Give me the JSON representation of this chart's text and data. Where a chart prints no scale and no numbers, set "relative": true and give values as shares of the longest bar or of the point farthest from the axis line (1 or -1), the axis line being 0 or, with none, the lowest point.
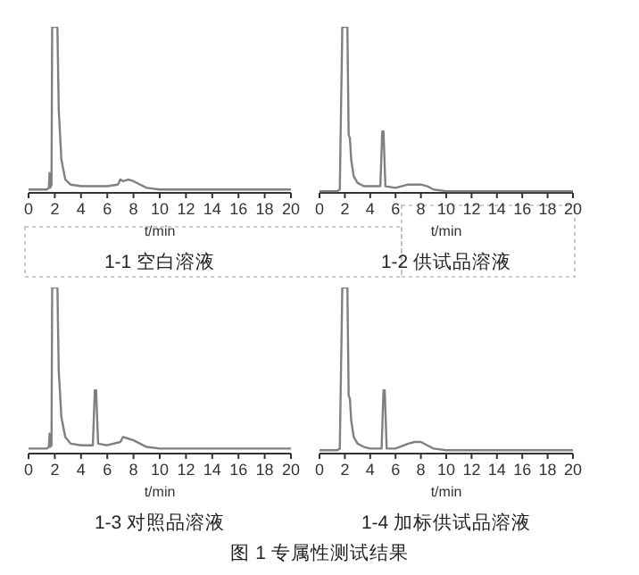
{
  "chart_data": [
    {
      "type": "line",
      "title": "1-1 空白溶液",
      "xlabel": "t/min",
      "relative": true,
      "xlim": [
        0,
        20
      ],
      "xticks": [
        0,
        2,
        4,
        6,
        8,
        10,
        12,
        14,
        16,
        18,
        20
      ],
      "series": [
        {
          "color": "#808080",
          "x": [
            0,
            1.4,
            1.55,
            1.6,
            1.65,
            1.75,
            1.8,
            2.2,
            2.3,
            2.5,
            2.8,
            3.2,
            4,
            6,
            6.8,
            7,
            7.2,
            7.6,
            8,
            8.5,
            9,
            10,
            12,
            20
          ],
          "values": [
            0.02,
            0.02,
            0.03,
            0.12,
            0.03,
            0.05,
            1,
            1,
            0.5,
            0.2,
            0.08,
            0.05,
            0.04,
            0.04,
            0.05,
            0.08,
            0.07,
            0.08,
            0.07,
            0.05,
            0.03,
            0.02,
            0.02,
            0.02
          ]
        }
      ]
    },
    {
      "type": "line",
      "title": "1-2 供试品溶液",
      "xlabel": "t/min",
      "relative": true,
      "xlim": [
        0,
        20
      ],
      "xticks": [
        0,
        2,
        4,
        6,
        8,
        10,
        12,
        14,
        16,
        18,
        20
      ],
      "series": [
        {
          "color": "#808080",
          "x": [
            0,
            1.4,
            1.6,
            1.8,
            2.2,
            2.3,
            2.4,
            2.5,
            2.7,
            3,
            3.5,
            4,
            4.8,
            4.95,
            5.05,
            5.2,
            6,
            7,
            7.5,
            8,
            8.5,
            9,
            10,
            12,
            20
          ],
          "values": [
            0.01,
            0.01,
            0.02,
            1,
            1,
            0.35,
            0.33,
            0.2,
            0.1,
            0.06,
            0.04,
            0.04,
            0.04,
            0.37,
            0.37,
            0.04,
            0.03,
            0.05,
            0.05,
            0.05,
            0.04,
            0.02,
            0.01,
            0.01,
            0.01
          ]
        }
      ]
    },
    {
      "type": "line",
      "title": "1-3 对照品溶液",
      "xlabel": "t/min",
      "relative": true,
      "xlim": [
        0,
        20
      ],
      "xticks": [
        0,
        2,
        4,
        6,
        8,
        10,
        12,
        14,
        16,
        18,
        20
      ],
      "series": [
        {
          "color": "#808080",
          "x": [
            0,
            1.4,
            1.55,
            1.6,
            1.65,
            1.75,
            1.8,
            2.2,
            2.3,
            2.5,
            2.8,
            3.2,
            4,
            4.9,
            5.05,
            5.15,
            5.3,
            6,
            7,
            7.2,
            7.6,
            8,
            8.5,
            9,
            10,
            12,
            20
          ],
          "values": [
            0.03,
            0.03,
            0.04,
            0.12,
            0.04,
            0.05,
            1,
            1,
            0.5,
            0.22,
            0.1,
            0.06,
            0.05,
            0.05,
            0.38,
            0.38,
            0.06,
            0.05,
            0.07,
            0.1,
            0.09,
            0.08,
            0.06,
            0.04,
            0.03,
            0.03,
            0.03
          ]
        }
      ]
    },
    {
      "type": "line",
      "title": "1-4 加标供试品溶液",
      "xlabel": "t/min",
      "relative": true,
      "xlim": [
        0,
        20
      ],
      "xticks": [
        0,
        2,
        4,
        6,
        8,
        10,
        12,
        14,
        16,
        18,
        20
      ],
      "annotations": [
        "图 1 专属性测试结果"
      ],
      "series": [
        {
          "color": "#808080",
          "x": [
            0,
            1.4,
            1.6,
            1.8,
            2.2,
            2.3,
            2.4,
            2.5,
            2.7,
            3,
            3.5,
            4,
            4.9,
            5.05,
            5.15,
            5.3,
            6,
            7,
            7.5,
            8,
            8.5,
            9,
            10,
            12,
            20
          ],
          "values": [
            0.02,
            0.02,
            0.03,
            1,
            1,
            0.35,
            0.33,
            0.2,
            0.1,
            0.06,
            0.04,
            0.03,
            0.03,
            0.38,
            0.38,
            0.03,
            0.03,
            0.06,
            0.07,
            0.07,
            0.05,
            0.03,
            0.02,
            0.02,
            0.02
          ]
        }
      ]
    }
  ]
}
